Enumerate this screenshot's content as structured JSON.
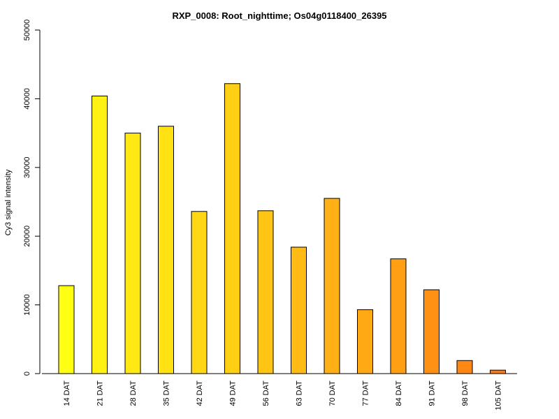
{
  "chart_data": {
    "type": "bar",
    "title": "RXP_0008: Root_nighttime; Os04g0118400_26395",
    "xlabel": "",
    "ylabel": "Cy3 signal intensity",
    "ylim": [
      0,
      50000
    ],
    "yticks": [
      0,
      10000,
      20000,
      30000,
      40000,
      50000
    ],
    "categories": [
      "14 DAT",
      "21 DAT",
      "28 DAT",
      "35 DAT",
      "42 DAT",
      "49 DAT",
      "56 DAT",
      "63 DAT",
      "70 DAT",
      "77 DAT",
      "84 DAT",
      "91 DAT",
      "98 DAT",
      "105 DAT"
    ],
    "values": [
      12800,
      40400,
      35000,
      36000,
      23600,
      42200,
      23700,
      18400,
      25500,
      9300,
      16700,
      12200,
      1900,
      500
    ],
    "colors": [
      "#FFFF14",
      "#FFF114",
      "#FFE814",
      "#FFE114",
      "#FFD714",
      "#FFCF14",
      "#FFC514",
      "#FFBB14",
      "#FFB014",
      "#FFA914",
      "#FF9F14",
      "#FF9214",
      "#FF8714",
      "#FF7A14"
    ],
    "grid": false,
    "legend": "none"
  }
}
